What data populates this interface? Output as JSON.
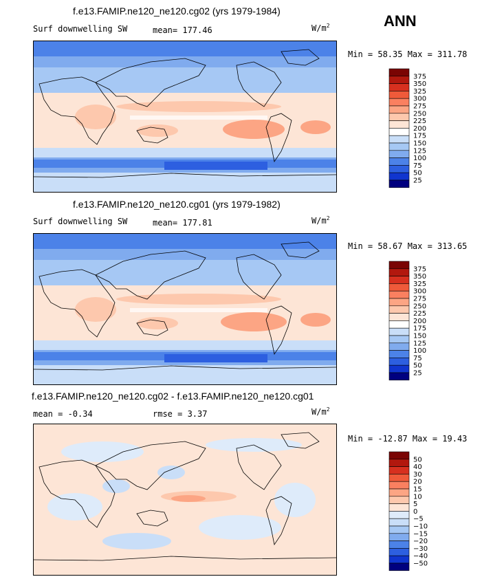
{
  "season": "ANN",
  "units": "W/m²",
  "panels": [
    {
      "title": "f.e13.FAMIP.ne120_ne120.cg02 (yrs 1979-1984)",
      "left_label": "Surf downwelling SW",
      "mid_label": "mean= 177.46",
      "minmax": "Min =  58.35 Max = 311.78"
    },
    {
      "title": "f.e13.FAMIP.ne120_ne120.cg01 (yrs 1979-1982)",
      "left_label": "Surf downwelling SW",
      "mid_label": "mean= 177.81",
      "minmax": "Min =  58.67 Max = 313.65"
    },
    {
      "title": "f.e13.FAMIP.ne120_ne120.cg02 - f.e13.FAMIP.ne120_ne120.cg01",
      "left_label": "mean =  -0.34",
      "mid_label": "rmse =   3.37",
      "minmax": "Min = -12.87 Max =  19.43"
    }
  ],
  "chart_data": [
    {
      "type": "heatmap",
      "title": "f.e13.FAMIP.ne120_ne120.cg02 (yrs 1979-1984)",
      "variable": "Surf downwelling SW",
      "units": "W/m²",
      "mean": 177.46,
      "min": 58.35,
      "max": 311.78,
      "colorbar_labels": [
        "375",
        "350",
        "325",
        "300",
        "275",
        "250",
        "225",
        "200",
        "175",
        "150",
        "125",
        "100",
        "75",
        "50",
        "25"
      ],
      "colorbar_colors": [
        "#7a0403",
        "#b2180e",
        "#d7301f",
        "#ef5a3a",
        "#fa8060",
        "#fca584",
        "#fdc8ad",
        "#fde5d6",
        "#ffffff",
        "#c9def8",
        "#a6c8f4",
        "#80abee",
        "#4c82e8",
        "#2d5fe0",
        "#1035cf",
        "#00007f"
      ]
    },
    {
      "type": "heatmap",
      "title": "f.e13.FAMIP.ne120_ne120.cg01 (yrs 1979-1982)",
      "variable": "Surf downwelling SW",
      "units": "W/m²",
      "mean": 177.81,
      "min": 58.67,
      "max": 313.65,
      "colorbar_labels": [
        "375",
        "350",
        "325",
        "300",
        "275",
        "250",
        "225",
        "200",
        "175",
        "150",
        "125",
        "100",
        "75",
        "50",
        "25"
      ],
      "colorbar_colors": [
        "#7a0403",
        "#b2180e",
        "#d7301f",
        "#ef5a3a",
        "#fa8060",
        "#fca584",
        "#fdc8ad",
        "#fde5d6",
        "#ffffff",
        "#c9def8",
        "#a6c8f4",
        "#80abee",
        "#4c82e8",
        "#2d5fe0",
        "#1035cf",
        "#00007f"
      ]
    },
    {
      "type": "heatmap",
      "title": "f.e13.FAMIP.ne120_ne120.cg02 - f.e13.FAMIP.ne120_ne120.cg01",
      "units": "W/m²",
      "mean": -0.34,
      "rmse": 3.37,
      "min": -12.87,
      "max": 19.43,
      "colorbar_labels": [
        "50",
        "40",
        "30",
        "20",
        "15",
        "10",
        "5",
        "0",
        "−5",
        "−10",
        "−15",
        "−20",
        "−30",
        "−40",
        "−50"
      ],
      "colorbar_colors": [
        "#7a0403",
        "#b2180e",
        "#d7301f",
        "#ef5a3a",
        "#fa8060",
        "#fca584",
        "#fdc8ad",
        "#fde5d6",
        "#deebfa",
        "#c9def8",
        "#a6c8f4",
        "#80abee",
        "#4c82e8",
        "#2d5fe0",
        "#1035cf",
        "#00007f"
      ]
    }
  ]
}
